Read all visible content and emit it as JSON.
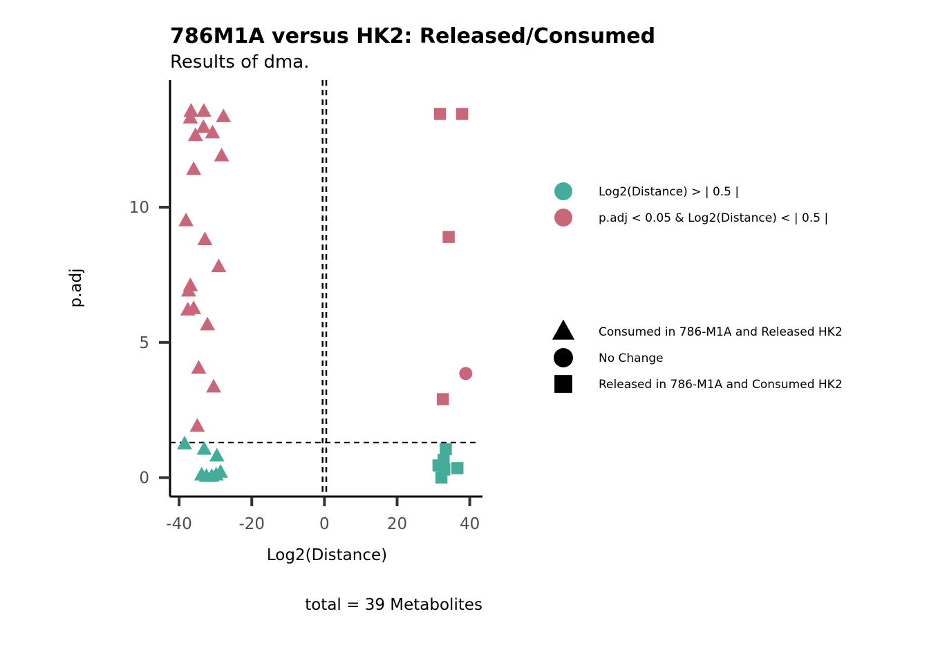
{
  "chart_data": {
    "type": "scatter",
    "title": "786M1A versus HK2: Released/Consumed",
    "subtitle": "Results of dma.",
    "xlabel": "Log2(Distance)",
    "ylabel": "p.adj",
    "caption": "total = 39 Metabolites",
    "xlim": [
      -42.5,
      43.5
    ],
    "ylim": [
      -0.7,
      14.7
    ],
    "x_ticks": [
      -40,
      -20,
      0,
      20,
      40
    ],
    "x_tick_labels": [
      "-40",
      "-20",
      "0",
      "20",
      "40"
    ],
    "y_ticks": [
      0,
      5,
      10
    ],
    "y_tick_labels": [
      "0",
      "5",
      "10"
    ],
    "grid": false,
    "reference_lines": {
      "vertical_x": [
        -0.5,
        0.5
      ],
      "horizontal_y": 1.3
    },
    "legend_position": "right",
    "color_legend": [
      {
        "label": "Log2(Distance)  > | 0.5 |",
        "color": "#45ac9a"
      },
      {
        "label": "p.adj  <  0.05  &  Log2(Distance)  < | 0.5 |",
        "color": "#c9667a"
      }
    ],
    "shape_legend": [
      {
        "label": "Consumed in 786-M1A  and Released HK2",
        "shape": "triangle"
      },
      {
        "label": "No Change",
        "shape": "circle"
      },
      {
        "label": "Released in 786-M1A and Consumed HK2",
        "shape": "square"
      }
    ],
    "points": [
      {
        "x": -36.7,
        "y": 13.55,
        "color": "#c9667a",
        "shape": "triangle"
      },
      {
        "x": -33.2,
        "y": 13.55,
        "color": "#c9667a",
        "shape": "triangle"
      },
      {
        "x": -36.9,
        "y": 13.3,
        "color": "#c9667a",
        "shape": "triangle"
      },
      {
        "x": -27.8,
        "y": 13.35,
        "color": "#c9667a",
        "shape": "triangle"
      },
      {
        "x": -33.3,
        "y": 12.95,
        "color": "#c9667a",
        "shape": "triangle"
      },
      {
        "x": -30.8,
        "y": 12.75,
        "color": "#c9667a",
        "shape": "triangle"
      },
      {
        "x": -35.5,
        "y": 12.65,
        "color": "#c9667a",
        "shape": "triangle"
      },
      {
        "x": -28.3,
        "y": 11.9,
        "color": "#c9667a",
        "shape": "triangle"
      },
      {
        "x": -36.0,
        "y": 11.4,
        "color": "#c9667a",
        "shape": "triangle"
      },
      {
        "x": -38.1,
        "y": 9.5,
        "color": "#c9667a",
        "shape": "triangle"
      },
      {
        "x": -32.9,
        "y": 8.8,
        "color": "#c9667a",
        "shape": "triangle"
      },
      {
        "x": -29.1,
        "y": 7.8,
        "color": "#c9667a",
        "shape": "triangle"
      },
      {
        "x": -36.9,
        "y": 7.1,
        "color": "#c9667a",
        "shape": "triangle"
      },
      {
        "x": -37.4,
        "y": 6.9,
        "color": "#c9667a",
        "shape": "triangle"
      },
      {
        "x": -36.0,
        "y": 6.25,
        "color": "#c9667a",
        "shape": "triangle"
      },
      {
        "x": -37.6,
        "y": 6.2,
        "color": "#c9667a",
        "shape": "triangle"
      },
      {
        "x": -32.2,
        "y": 5.65,
        "color": "#c9667a",
        "shape": "triangle"
      },
      {
        "x": -34.6,
        "y": 4.05,
        "color": "#c9667a",
        "shape": "triangle"
      },
      {
        "x": -30.5,
        "y": 3.35,
        "color": "#c9667a",
        "shape": "triangle"
      },
      {
        "x": -35.0,
        "y": 1.9,
        "color": "#c9667a",
        "shape": "triangle"
      },
      {
        "x": -38.5,
        "y": 1.25,
        "color": "#45ac9a",
        "shape": "triangle"
      },
      {
        "x": -33.1,
        "y": 1.05,
        "color": "#45ac9a",
        "shape": "triangle"
      },
      {
        "x": -29.6,
        "y": 0.8,
        "color": "#45ac9a",
        "shape": "triangle"
      },
      {
        "x": -28.6,
        "y": 0.2,
        "color": "#45ac9a",
        "shape": "triangle"
      },
      {
        "x": -29.8,
        "y": 0.1,
        "color": "#45ac9a",
        "shape": "triangle"
      },
      {
        "x": -31.0,
        "y": 0.05,
        "color": "#45ac9a",
        "shape": "triangle"
      },
      {
        "x": -32.5,
        "y": 0.05,
        "color": "#45ac9a",
        "shape": "triangle"
      },
      {
        "x": -33.8,
        "y": 0.1,
        "color": "#45ac9a",
        "shape": "triangle"
      },
      {
        "x": 31.8,
        "y": 13.45,
        "color": "#c9667a",
        "shape": "square"
      },
      {
        "x": 37.9,
        "y": 13.45,
        "color": "#c9667a",
        "shape": "square"
      },
      {
        "x": 34.2,
        "y": 8.9,
        "color": "#c9667a",
        "shape": "square"
      },
      {
        "x": 32.6,
        "y": 2.9,
        "color": "#c9667a",
        "shape": "square"
      },
      {
        "x": 38.9,
        "y": 3.85,
        "color": "#c9667a",
        "shape": "circle"
      },
      {
        "x": 33.4,
        "y": 1.05,
        "color": "#45ac9a",
        "shape": "square"
      },
      {
        "x": 32.8,
        "y": 0.65,
        "color": "#45ac9a",
        "shape": "square"
      },
      {
        "x": 31.4,
        "y": 0.45,
        "color": "#45ac9a",
        "shape": "square"
      },
      {
        "x": 36.6,
        "y": 0.35,
        "color": "#45ac9a",
        "shape": "square"
      },
      {
        "x": 33.0,
        "y": 0.3,
        "color": "#45ac9a",
        "shape": "square"
      },
      {
        "x": 32.2,
        "y": 0.0,
        "color": "#45ac9a",
        "shape": "square"
      }
    ]
  }
}
